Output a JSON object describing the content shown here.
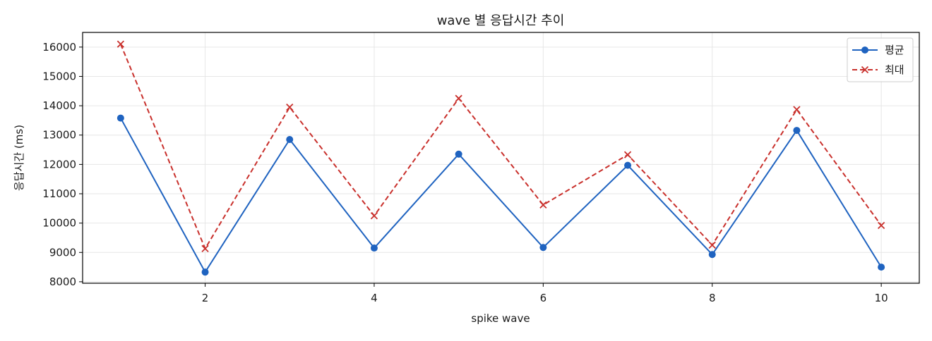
{
  "chart_data": {
    "type": "line",
    "title": "wave 별 응답시간 추이",
    "xlabel": "spike wave",
    "ylabel": "응답시간 (ms)",
    "x": [
      1,
      2,
      3,
      4,
      5,
      6,
      7,
      8,
      9,
      10
    ],
    "xlim": [
      0.55,
      10.45
    ],
    "ylim": [
      7950,
      16500
    ],
    "x_ticks": [
      2,
      4,
      6,
      8,
      10
    ],
    "y_ticks": [
      8000,
      9000,
      10000,
      11000,
      12000,
      13000,
      14000,
      15000,
      16000
    ],
    "grid": true,
    "legend_position": "top-right",
    "series": [
      {
        "name": "평균",
        "color": "#1f63c0",
        "line_style": "solid",
        "marker": "circle",
        "values": [
          13580,
          8330,
          12850,
          9150,
          12350,
          9170,
          11970,
          8930,
          13160,
          8500
        ]
      },
      {
        "name": "최대",
        "color": "#c9302c",
        "line_style": "dashed",
        "marker": "x",
        "values": [
          16100,
          9130,
          13950,
          10250,
          14250,
          10620,
          12330,
          9250,
          13870,
          9920
        ]
      }
    ]
  }
}
